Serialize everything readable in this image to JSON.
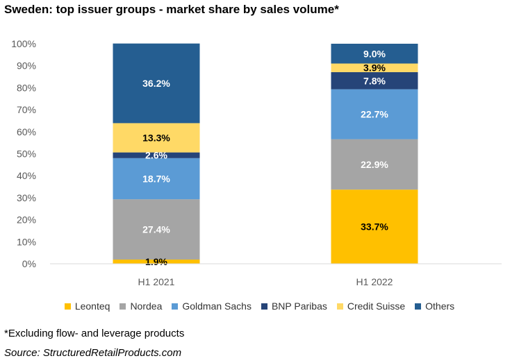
{
  "chart_data": {
    "type": "bar",
    "stacked": true,
    "title": "Sweden: top issuer groups - market share by sales volume*",
    "categories": [
      "H1 2021",
      "H1 2022"
    ],
    "ylim": [
      0,
      100
    ],
    "yticks": [
      "0%",
      "10%",
      "20%",
      "30%",
      "40%",
      "50%",
      "60%",
      "70%",
      "80%",
      "90%",
      "100%"
    ],
    "legend_position": "bottom",
    "grid": false,
    "series": [
      {
        "name": "Leonteq",
        "color": "#FFC000",
        "label_color": "#000000",
        "values": [
          1.9,
          33.7
        ],
        "labels": [
          "1.9%",
          "33.7%"
        ]
      },
      {
        "name": "Nordea",
        "color": "#A5A5A5",
        "label_color": "#FFFFFF",
        "values": [
          27.4,
          22.9
        ],
        "labels": [
          "27.4%",
          "22.9%"
        ]
      },
      {
        "name": "Goldman Sachs",
        "color": "#5B9BD5",
        "label_color": "#FFFFFF",
        "values": [
          18.7,
          22.7
        ],
        "labels": [
          "18.7%",
          "22.7%"
        ]
      },
      {
        "name": "BNP Paribas",
        "color": "#264478",
        "label_color": "#FFFFFF",
        "values": [
          2.6,
          7.8
        ],
        "labels": [
          "2.6%",
          "7.8%"
        ]
      },
      {
        "name": "Credit Suisse",
        "color": "#FFD966",
        "label_color": "#000000",
        "values": [
          13.3,
          3.9
        ],
        "labels": [
          "13.3%",
          "3.9%"
        ]
      },
      {
        "name": "Others",
        "color": "#255E91",
        "label_color": "#FFFFFF",
        "values": [
          36.2,
          9.0
        ],
        "labels": [
          "36.2%",
          "9.0%"
        ]
      }
    ],
    "footnote": "*Excluding flow- and leverage products",
    "source": "Source: StructuredRetailProducts.com"
  }
}
